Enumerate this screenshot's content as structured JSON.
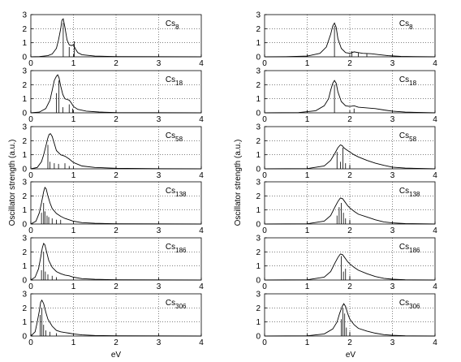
{
  "figure": {
    "xlabel": "eV",
    "ylabel": "Oscillator strength (a.u.)"
  },
  "chart_data": [
    {
      "type": "line",
      "label_main": "Cs",
      "label_sub": "8",
      "column": "left",
      "x": [
        0,
        0.2,
        0.4,
        0.5,
        0.6,
        0.65,
        0.7,
        0.73,
        0.76,
        0.8,
        0.85,
        0.9,
        0.95,
        1.0,
        1.05,
        1.1,
        1.2,
        1.5,
        2.0,
        3.0,
        4.0
      ],
      "y": [
        0,
        0.02,
        0.08,
        0.2,
        0.6,
        1.2,
        2.0,
        2.6,
        2.7,
        2.1,
        1.2,
        0.85,
        0.8,
        0.85,
        0.55,
        0.3,
        0.15,
        0.05,
        0.02,
        0.01,
        0
      ],
      "sticks": [
        [
          0.76,
          2.4
        ],
        [
          0.9,
          0.7
        ],
        [
          1.02,
          1.1
        ]
      ],
      "xlim": [
        0,
        4
      ],
      "ylim": [
        0,
        3
      ],
      "xticks": [
        0,
        1,
        2,
        3,
        4
      ],
      "yticks": [
        0,
        1,
        2,
        3
      ]
    },
    {
      "type": "line",
      "label_main": "Cs",
      "label_sub": "8",
      "column": "right",
      "x": [
        0,
        0.5,
        1.0,
        1.3,
        1.45,
        1.55,
        1.6,
        1.64,
        1.68,
        1.72,
        1.8,
        1.9,
        2.0,
        2.1,
        2.2,
        2.3,
        2.5,
        2.7,
        2.9,
        3.2,
        4.0
      ],
      "y": [
        0,
        0.01,
        0.05,
        0.25,
        0.7,
        1.6,
        2.2,
        2.4,
        2.1,
        1.3,
        0.6,
        0.3,
        0.25,
        0.35,
        0.3,
        0.25,
        0.22,
        0.15,
        0.08,
        0.03,
        0
      ],
      "sticks": [
        [
          1.64,
          2.2
        ],
        [
          2.05,
          0.4
        ],
        [
          2.2,
          0.3
        ],
        [
          2.4,
          0.25
        ]
      ],
      "xlim": [
        0,
        4
      ],
      "ylim": [
        0,
        3
      ],
      "xticks": [
        0,
        1,
        2,
        3,
        4
      ],
      "yticks": [
        0,
        1,
        2,
        3
      ]
    },
    {
      "type": "line",
      "label_main": "Cs",
      "label_sub": "18",
      "column": "left",
      "x": [
        0,
        0.2,
        0.35,
        0.45,
        0.5,
        0.55,
        0.6,
        0.63,
        0.66,
        0.7,
        0.75,
        0.8,
        0.85,
        0.9,
        0.95,
        1.0,
        1.1,
        1.3,
        1.6,
        2.0,
        4.0
      ],
      "y": [
        0,
        0.05,
        0.3,
        0.9,
        1.6,
        2.3,
        2.6,
        2.7,
        2.5,
        1.9,
        1.3,
        1.0,
        0.95,
        0.9,
        0.7,
        0.45,
        0.25,
        0.12,
        0.06,
        0.02,
        0
      ],
      "sticks": [
        [
          0.6,
          1.4
        ],
        [
          0.66,
          2.3
        ],
        [
          0.75,
          0.4
        ],
        [
          0.9,
          0.6
        ],
        [
          0.98,
          0.3
        ]
      ],
      "xlim": [
        0,
        4
      ],
      "ylim": [
        0,
        3
      ],
      "xticks": [
        0,
        1,
        2,
        3,
        4
      ],
      "yticks": [
        0,
        1,
        2,
        3
      ]
    },
    {
      "type": "line",
      "label_main": "Cs",
      "label_sub": "18",
      "column": "right",
      "x": [
        0,
        0.8,
        1.2,
        1.4,
        1.5,
        1.55,
        1.6,
        1.64,
        1.68,
        1.72,
        1.8,
        1.9,
        2.0,
        2.1,
        2.2,
        2.4,
        2.6,
        2.8,
        3.0,
        3.3,
        4.0
      ],
      "y": [
        0,
        0.02,
        0.15,
        0.5,
        1.0,
        1.6,
        2.1,
        2.3,
        2.1,
        1.5,
        0.8,
        0.5,
        0.45,
        0.5,
        0.4,
        0.35,
        0.3,
        0.2,
        0.12,
        0.05,
        0
      ],
      "sticks": [
        [
          1.64,
          2.0
        ],
        [
          2.1,
          0.3
        ]
      ],
      "xlim": [
        0,
        4
      ],
      "ylim": [
        0,
        3
      ],
      "xticks": [
        0,
        1,
        2,
        3,
        4
      ],
      "yticks": [
        0,
        1,
        2,
        3
      ]
    },
    {
      "type": "line",
      "label_main": "Cs",
      "label_sub": "58",
      "column": "left",
      "x": [
        0,
        0.15,
        0.25,
        0.3,
        0.35,
        0.4,
        0.43,
        0.46,
        0.5,
        0.55,
        0.6,
        0.7,
        0.8,
        0.9,
        1.0,
        1.2,
        1.5,
        2.0,
        3.0,
        4.0
      ],
      "y": [
        0,
        0.1,
        0.5,
        1.0,
        1.6,
        2.2,
        2.45,
        2.5,
        2.3,
        1.8,
        1.3,
        1.0,
        0.9,
        0.7,
        0.45,
        0.2,
        0.1,
        0.04,
        0.01,
        0
      ],
      "sticks": [
        [
          0.4,
          1.7
        ],
        [
          0.45,
          0.5
        ],
        [
          0.55,
          0.4
        ],
        [
          0.65,
          0.35
        ],
        [
          0.8,
          0.4
        ],
        [
          0.9,
          0.2
        ]
      ],
      "xlim": [
        0,
        4
      ],
      "ylim": [
        0,
        3
      ],
      "xticks": [
        0,
        1,
        2,
        3,
        4
      ],
      "yticks": [
        0,
        1,
        2,
        3
      ]
    },
    {
      "type": "line",
      "label_main": "Cs",
      "label_sub": "58",
      "column": "right",
      "x": [
        0,
        1.0,
        1.4,
        1.55,
        1.65,
        1.72,
        1.78,
        1.82,
        1.86,
        1.9,
        1.95,
        2.0,
        2.1,
        2.2,
        2.4,
        2.6,
        2.8,
        3.0,
        3.3,
        4.0
      ],
      "y": [
        0,
        0.02,
        0.2,
        0.6,
        1.1,
        1.5,
        1.7,
        1.65,
        1.5,
        1.4,
        1.3,
        1.2,
        1.0,
        0.85,
        0.6,
        0.4,
        0.25,
        0.12,
        0.05,
        0
      ],
      "sticks": [
        [
          1.7,
          1.2
        ],
        [
          1.78,
          0.5
        ],
        [
          1.84,
          1.5
        ],
        [
          1.9,
          0.4
        ],
        [
          2.0,
          0.3
        ]
      ],
      "xlim": [
        0,
        4
      ],
      "ylim": [
        0,
        3
      ],
      "xticks": [
        0,
        1,
        2,
        3,
        4
      ],
      "yticks": [
        0,
        1,
        2,
        3
      ]
    },
    {
      "type": "line",
      "label_main": "Cs",
      "label_sub": "138",
      "column": "left",
      "x": [
        0,
        0.12,
        0.2,
        0.25,
        0.3,
        0.33,
        0.36,
        0.4,
        0.45,
        0.5,
        0.6,
        0.7,
        0.8,
        0.9,
        1.0,
        1.2,
        1.5,
        2.0,
        3.0,
        4.0
      ],
      "y": [
        0,
        0.2,
        0.8,
        1.5,
        2.3,
        2.6,
        2.5,
        2.0,
        1.5,
        1.1,
        0.75,
        0.55,
        0.4,
        0.3,
        0.2,
        0.1,
        0.05,
        0.02,
        0.01,
        0
      ],
      "sticks": [
        [
          0.25,
          0.8
        ],
        [
          0.3,
          1.5
        ],
        [
          0.33,
          0.9
        ],
        [
          0.38,
          0.6
        ],
        [
          0.42,
          0.5
        ],
        [
          0.5,
          0.4
        ],
        [
          0.6,
          0.3
        ],
        [
          0.7,
          0.3
        ]
      ],
      "xlim": [
        0,
        4
      ],
      "ylim": [
        0,
        3
      ],
      "xticks": [
        0,
        1,
        2,
        3,
        4
      ],
      "yticks": [
        0,
        1,
        2,
        3
      ]
    },
    {
      "type": "line",
      "label_main": "Cs",
      "label_sub": "138",
      "column": "right",
      "x": [
        0,
        1.0,
        1.4,
        1.55,
        1.65,
        1.72,
        1.78,
        1.83,
        1.88,
        1.95,
        2.0,
        2.1,
        2.2,
        2.4,
        2.6,
        2.8,
        3.0,
        3.3,
        4.0
      ],
      "y": [
        0,
        0.02,
        0.2,
        0.6,
        1.2,
        1.6,
        1.85,
        1.8,
        1.6,
        1.3,
        1.15,
        0.9,
        0.7,
        0.5,
        0.3,
        0.15,
        0.08,
        0.03,
        0
      ],
      "sticks": [
        [
          1.7,
          0.6
        ],
        [
          1.75,
          1.2
        ],
        [
          1.8,
          1.5
        ],
        [
          1.85,
          0.8
        ],
        [
          1.9,
          0.4
        ],
        [
          2.0,
          0.3
        ]
      ],
      "xlim": [
        0,
        4
      ],
      "ylim": [
        0,
        3
      ],
      "xticks": [
        0,
        1,
        2,
        3,
        4
      ],
      "yticks": [
        0,
        1,
        2,
        3
      ]
    },
    {
      "type": "line",
      "label_main": "Cs",
      "label_sub": "186",
      "column": "left",
      "x": [
        0,
        0.1,
        0.18,
        0.23,
        0.27,
        0.3,
        0.33,
        0.37,
        0.42,
        0.5,
        0.6,
        0.7,
        0.8,
        0.9,
        1.0,
        1.2,
        1.5,
        2.0,
        3.0,
        4.0
      ],
      "y": [
        0,
        0.2,
        0.8,
        1.6,
        2.3,
        2.6,
        2.5,
        2.0,
        1.4,
        0.9,
        0.6,
        0.45,
        0.35,
        0.3,
        0.2,
        0.1,
        0.05,
        0.02,
        0.01,
        0
      ],
      "sticks": [
        [
          0.25,
          0.7
        ],
        [
          0.3,
          2.0
        ],
        [
          0.34,
          0.6
        ],
        [
          0.4,
          0.4
        ],
        [
          0.5,
          0.3
        ],
        [
          0.6,
          0.2
        ]
      ],
      "xlim": [
        0,
        4
      ],
      "ylim": [
        0,
        3
      ],
      "xticks": [
        0,
        1,
        2,
        3,
        4
      ],
      "yticks": [
        0,
        1,
        2,
        3
      ]
    },
    {
      "type": "line",
      "label_main": "Cs",
      "label_sub": "186",
      "column": "right",
      "x": [
        0,
        1.0,
        1.4,
        1.55,
        1.65,
        1.72,
        1.78,
        1.83,
        1.88,
        1.95,
        2.0,
        2.1,
        2.2,
        2.4,
        2.6,
        2.8,
        3.0,
        3.3,
        4.0
      ],
      "y": [
        0,
        0.02,
        0.2,
        0.6,
        1.2,
        1.6,
        1.85,
        1.8,
        1.6,
        1.3,
        1.15,
        0.9,
        0.7,
        0.45,
        0.25,
        0.12,
        0.06,
        0.02,
        0
      ],
      "sticks": [
        [
          1.8,
          1.7
        ],
        [
          1.85,
          0.6
        ],
        [
          1.9,
          0.8
        ],
        [
          2.0,
          0.3
        ]
      ],
      "xlim": [
        0,
        4
      ],
      "ylim": [
        0,
        3
      ],
      "xticks": [
        0,
        1,
        2,
        3,
        4
      ],
      "yticks": [
        0,
        1,
        2,
        3
      ]
    },
    {
      "type": "line",
      "label_main": "Cs",
      "label_sub": "306",
      "column": "left",
      "x": [
        0,
        0.1,
        0.15,
        0.2,
        0.23,
        0.26,
        0.3,
        0.35,
        0.4,
        0.5,
        0.6,
        0.7,
        0.8,
        0.9,
        1.0,
        1.2,
        1.5,
        2.0,
        3.0,
        4.0
      ],
      "y": [
        0,
        0.3,
        1.0,
        1.8,
        2.4,
        2.55,
        2.3,
        1.7,
        1.2,
        0.7,
        0.4,
        0.3,
        0.25,
        0.2,
        0.15,
        0.08,
        0.04,
        0.02,
        0.01,
        0
      ],
      "sticks": [
        [
          0.22,
          1.5
        ],
        [
          0.26,
          2.0
        ],
        [
          0.3,
          0.8
        ],
        [
          0.35,
          0.4
        ],
        [
          0.45,
          0.3
        ],
        [
          0.6,
          0.2
        ]
      ],
      "xlim": [
        0,
        4
      ],
      "ylim": [
        0,
        3
      ],
      "xticks": [
        0,
        1,
        2,
        3,
        4
      ],
      "yticks": [
        0,
        1,
        2,
        3
      ]
    },
    {
      "type": "line",
      "label_main": "Cs",
      "label_sub": "306",
      "column": "right",
      "x": [
        0,
        1.0,
        1.4,
        1.6,
        1.7,
        1.76,
        1.82,
        1.86,
        1.9,
        1.95,
        2.0,
        2.1,
        2.2,
        2.4,
        2.6,
        2.8,
        3.0,
        3.3,
        4.0
      ],
      "y": [
        0,
        0.02,
        0.15,
        0.5,
        1.0,
        1.6,
        2.1,
        2.3,
        2.1,
        1.6,
        1.2,
        0.8,
        0.55,
        0.35,
        0.2,
        0.1,
        0.05,
        0.02,
        0
      ],
      "sticks": [
        [
          1.8,
          1.2
        ],
        [
          1.84,
          2.0
        ],
        [
          1.88,
          1.6
        ],
        [
          1.92,
          0.6
        ],
        [
          2.0,
          0.3
        ]
      ],
      "xlim": [
        0,
        4
      ],
      "ylim": [
        0,
        3
      ],
      "xticks": [
        0,
        1,
        2,
        3,
        4
      ],
      "yticks": [
        0,
        1,
        2,
        3
      ]
    }
  ]
}
